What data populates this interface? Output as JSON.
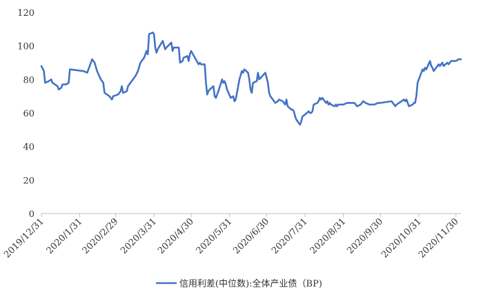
{
  "colors": {
    "series": "#4472C4",
    "axis": "#bfbfbf",
    "text": "#333333",
    "background": "#ffffff"
  },
  "chart_data": {
    "type": "line",
    "title": "",
    "xlabel": "",
    "ylabel": "",
    "ylim": [
      0,
      120
    ],
    "y_ticks": [
      0,
      20,
      40,
      60,
      80,
      100,
      120
    ],
    "x_range": [
      "2019-12-31",
      "2020-12-04"
    ],
    "x_tick_labels": [
      "2019/12/31",
      "2020/1/31",
      "2020/2/29",
      "2020/3/31",
      "2020/4/30",
      "2020/5/31",
      "2020/6/30",
      "2020/7/31",
      "2020/8/31",
      "2020/9/30",
      "2020/10/31",
      "2020/11/30"
    ],
    "x_tick_dates": [
      "2019-12-31",
      "2020-01-31",
      "2020-02-29",
      "2020-03-31",
      "2020-04-30",
      "2020-05-31",
      "2020-06-30",
      "2020-07-31",
      "2020-08-31",
      "2020-09-30",
      "2020-10-31",
      "2020-11-30"
    ],
    "grid": false,
    "legend_position": "bottom",
    "series": [
      {
        "name": "信用利差(中位数):全体产业债（BP)",
        "points": [
          [
            "2019-12-31",
            88
          ],
          [
            "2020-01-02",
            85
          ],
          [
            "2020-01-03",
            78
          ],
          [
            "2020-01-06",
            79
          ],
          [
            "2020-01-08",
            80
          ],
          [
            "2020-01-09",
            78
          ],
          [
            "2020-01-13",
            76
          ],
          [
            "2020-01-14",
            74
          ],
          [
            "2020-01-16",
            75
          ],
          [
            "2020-01-17",
            77
          ],
          [
            "2020-01-20",
            77
          ],
          [
            "2020-01-22",
            78
          ],
          [
            "2020-01-23",
            86
          ],
          [
            "2020-02-03",
            85
          ],
          [
            "2020-02-06",
            84
          ],
          [
            "2020-02-07",
            86
          ],
          [
            "2020-02-10",
            92
          ],
          [
            "2020-02-12",
            90
          ],
          [
            "2020-02-14",
            85
          ],
          [
            "2020-02-17",
            80
          ],
          [
            "2020-02-19",
            78
          ],
          [
            "2020-02-20",
            72
          ],
          [
            "2020-02-24",
            70
          ],
          [
            "2020-02-25",
            69
          ],
          [
            "2020-02-26",
            68
          ],
          [
            "2020-02-27",
            70
          ],
          [
            "2020-03-02",
            71
          ],
          [
            "2020-03-04",
            73
          ],
          [
            "2020-03-05",
            76
          ],
          [
            "2020-03-06",
            72
          ],
          [
            "2020-03-09",
            73
          ],
          [
            "2020-03-10",
            76
          ],
          [
            "2020-03-12",
            78
          ],
          [
            "2020-03-16",
            82
          ],
          [
            "2020-03-18",
            85
          ],
          [
            "2020-03-20",
            90
          ],
          [
            "2020-03-23",
            93
          ],
          [
            "2020-03-25",
            97
          ],
          [
            "2020-03-26",
            95
          ],
          [
            "2020-03-27",
            107
          ],
          [
            "2020-03-30",
            108
          ],
          [
            "2020-03-31",
            107
          ],
          [
            "2020-04-01",
            99
          ],
          [
            "2020-04-02",
            96
          ],
          [
            "2020-04-03",
            98
          ],
          [
            "2020-04-07",
            103
          ],
          [
            "2020-04-09",
            98
          ],
          [
            "2020-04-10",
            99
          ],
          [
            "2020-04-14",
            102
          ],
          [
            "2020-04-15",
            97
          ],
          [
            "2020-04-16",
            99
          ],
          [
            "2020-04-20",
            99
          ],
          [
            "2020-04-21",
            90
          ],
          [
            "2020-04-23",
            91
          ],
          [
            "2020-04-24",
            93
          ],
          [
            "2020-04-27",
            94
          ],
          [
            "2020-04-28",
            91
          ],
          [
            "2020-04-29",
            95
          ],
          [
            "2020-04-30",
            97
          ],
          [
            "2020-05-06",
            89
          ],
          [
            "2020-05-07",
            90
          ],
          [
            "2020-05-08",
            89
          ],
          [
            "2020-05-11",
            89
          ],
          [
            "2020-05-12",
            78
          ],
          [
            "2020-05-13",
            71
          ],
          [
            "2020-05-14",
            73
          ],
          [
            "2020-05-15",
            74
          ],
          [
            "2020-05-18",
            76
          ],
          [
            "2020-05-19",
            70
          ],
          [
            "2020-05-20",
            69
          ],
          [
            "2020-05-21",
            71
          ],
          [
            "2020-05-22",
            73
          ],
          [
            "2020-05-25",
            80
          ],
          [
            "2020-05-26",
            78
          ],
          [
            "2020-05-27",
            79
          ],
          [
            "2020-05-28",
            77
          ],
          [
            "2020-05-29",
            74
          ],
          [
            "2020-06-01",
            69
          ],
          [
            "2020-06-03",
            70
          ],
          [
            "2020-06-04",
            67
          ],
          [
            "2020-06-05",
            68
          ],
          [
            "2020-06-08",
            80
          ],
          [
            "2020-06-10",
            85
          ],
          [
            "2020-06-11",
            84
          ],
          [
            "2020-06-12",
            86
          ],
          [
            "2020-06-15",
            84
          ],
          [
            "2020-06-16",
            80
          ],
          [
            "2020-06-17",
            74
          ],
          [
            "2020-06-18",
            72
          ],
          [
            "2020-06-19",
            78
          ],
          [
            "2020-06-22",
            79
          ],
          [
            "2020-06-23",
            84
          ],
          [
            "2020-06-24",
            80
          ],
          [
            "2020-06-29",
            84
          ],
          [
            "2020-06-30",
            81
          ],
          [
            "2020-07-01",
            78
          ],
          [
            "2020-07-02",
            72
          ],
          [
            "2020-07-03",
            70
          ],
          [
            "2020-07-06",
            67
          ],
          [
            "2020-07-07",
            66
          ],
          [
            "2020-07-09",
            67
          ],
          [
            "2020-07-10",
            68
          ],
          [
            "2020-07-13",
            67
          ],
          [
            "2020-07-14",
            66
          ],
          [
            "2020-07-15",
            65
          ],
          [
            "2020-07-16",
            68
          ],
          [
            "2020-07-17",
            64
          ],
          [
            "2020-07-20",
            62
          ],
          [
            "2020-07-21",
            62
          ],
          [
            "2020-07-22",
            61
          ],
          [
            "2020-07-23",
            58
          ],
          [
            "2020-07-24",
            56
          ],
          [
            "2020-07-27",
            53
          ],
          [
            "2020-07-28",
            55
          ],
          [
            "2020-07-29",
            58
          ],
          [
            "2020-07-31",
            59
          ],
          [
            "2020-08-03",
            61
          ],
          [
            "2020-08-04",
            60
          ],
          [
            "2020-08-05",
            60
          ],
          [
            "2020-08-06",
            61
          ],
          [
            "2020-08-07",
            65
          ],
          [
            "2020-08-10",
            66
          ],
          [
            "2020-08-11",
            67
          ],
          [
            "2020-08-12",
            69
          ],
          [
            "2020-08-13",
            68
          ],
          [
            "2020-08-14",
            69
          ],
          [
            "2020-08-17",
            66
          ],
          [
            "2020-08-18",
            67
          ],
          [
            "2020-08-19",
            65
          ],
          [
            "2020-08-20",
            66
          ],
          [
            "2020-08-21",
            65
          ],
          [
            "2020-08-24",
            64
          ],
          [
            "2020-08-25",
            65
          ],
          [
            "2020-08-26",
            64
          ],
          [
            "2020-08-27",
            65
          ],
          [
            "2020-08-31",
            65
          ],
          [
            "2020-09-03",
            66
          ],
          [
            "2020-09-07",
            66
          ],
          [
            "2020-09-09",
            66
          ],
          [
            "2020-09-11",
            64
          ],
          [
            "2020-09-14",
            65
          ],
          [
            "2020-09-16",
            67
          ],
          [
            "2020-09-18",
            66
          ],
          [
            "2020-09-21",
            65
          ],
          [
            "2020-09-23",
            65
          ],
          [
            "2020-09-25",
            65
          ],
          [
            "2020-09-28",
            66
          ],
          [
            "2020-09-29",
            66
          ],
          [
            "2020-09-30",
            66
          ],
          [
            "2020-10-09",
            67
          ],
          [
            "2020-10-12",
            64
          ],
          [
            "2020-10-13",
            65
          ],
          [
            "2020-10-15",
            66
          ],
          [
            "2020-10-19",
            68
          ],
          [
            "2020-10-20",
            67
          ],
          [
            "2020-10-21",
            68
          ],
          [
            "2020-10-22",
            66
          ],
          [
            "2020-10-23",
            64
          ],
          [
            "2020-10-26",
            65
          ],
          [
            "2020-10-27",
            66
          ],
          [
            "2020-10-28",
            66
          ],
          [
            "2020-10-29",
            70
          ],
          [
            "2020-10-30",
            78
          ],
          [
            "2020-11-02",
            84
          ],
          [
            "2020-11-03",
            86
          ],
          [
            "2020-11-04",
            85
          ],
          [
            "2020-11-05",
            87
          ],
          [
            "2020-11-06",
            86
          ],
          [
            "2020-11-09",
            91
          ],
          [
            "2020-11-10",
            88
          ],
          [
            "2020-11-11",
            87
          ],
          [
            "2020-11-12",
            85
          ],
          [
            "2020-11-13",
            86
          ],
          [
            "2020-11-16",
            89
          ],
          [
            "2020-11-17",
            88
          ],
          [
            "2020-11-18",
            89
          ],
          [
            "2020-11-19",
            90
          ],
          [
            "2020-11-20",
            88
          ],
          [
            "2020-11-23",
            90
          ],
          [
            "2020-11-24",
            89
          ],
          [
            "2020-11-25",
            90
          ],
          [
            "2020-11-26",
            91
          ],
          [
            "2020-11-27",
            91
          ],
          [
            "2020-11-30",
            91
          ],
          [
            "2020-12-02",
            92
          ],
          [
            "2020-12-04",
            92
          ]
        ]
      }
    ]
  }
}
